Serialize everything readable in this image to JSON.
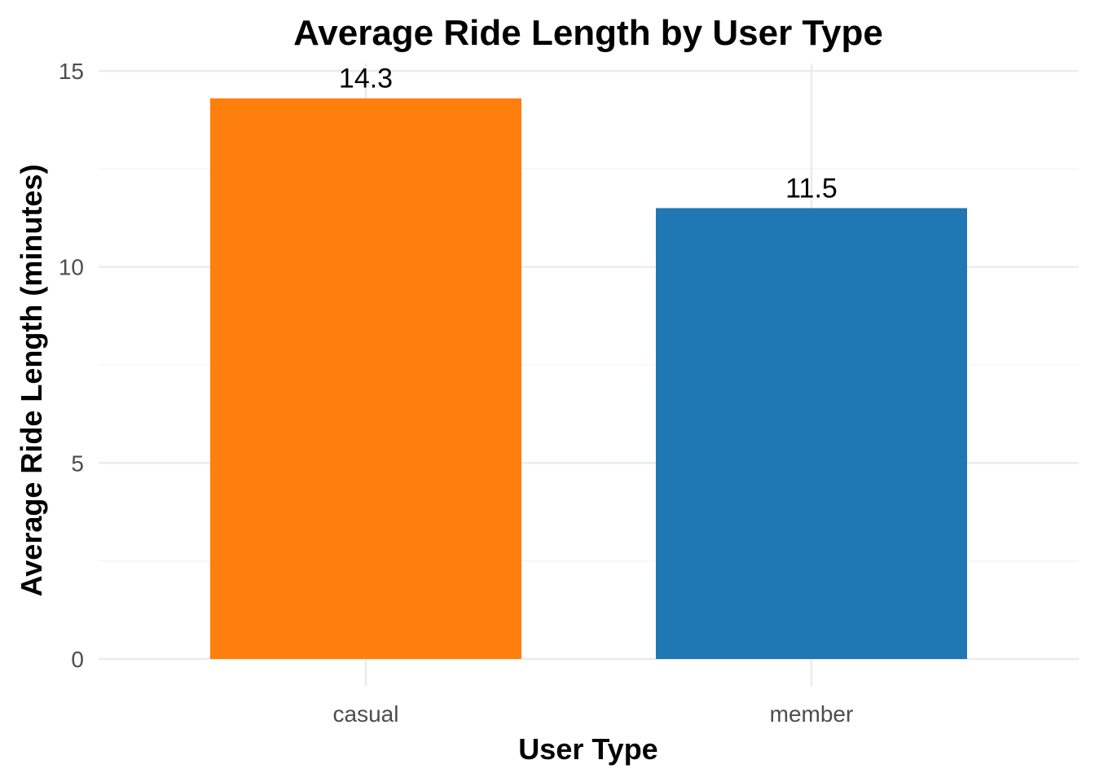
{
  "chart_data": {
    "type": "bar",
    "title": "Average Ride Length by User Type",
    "xlabel": "User Type",
    "ylabel": "Average Ride Length (minutes)",
    "categories": [
      "casual",
      "member"
    ],
    "values": [
      14.3,
      11.5
    ],
    "data_labels": [
      "14.3",
      "11.5"
    ],
    "colors": [
      "#ff7f0e",
      "#1f77b4"
    ],
    "ylim": [
      0,
      15
    ],
    "y_ticks": [
      0,
      5,
      10,
      15
    ],
    "y_tick_labels": [
      "0",
      "5",
      "10",
      "15"
    ],
    "grid": true,
    "legend": "none"
  }
}
